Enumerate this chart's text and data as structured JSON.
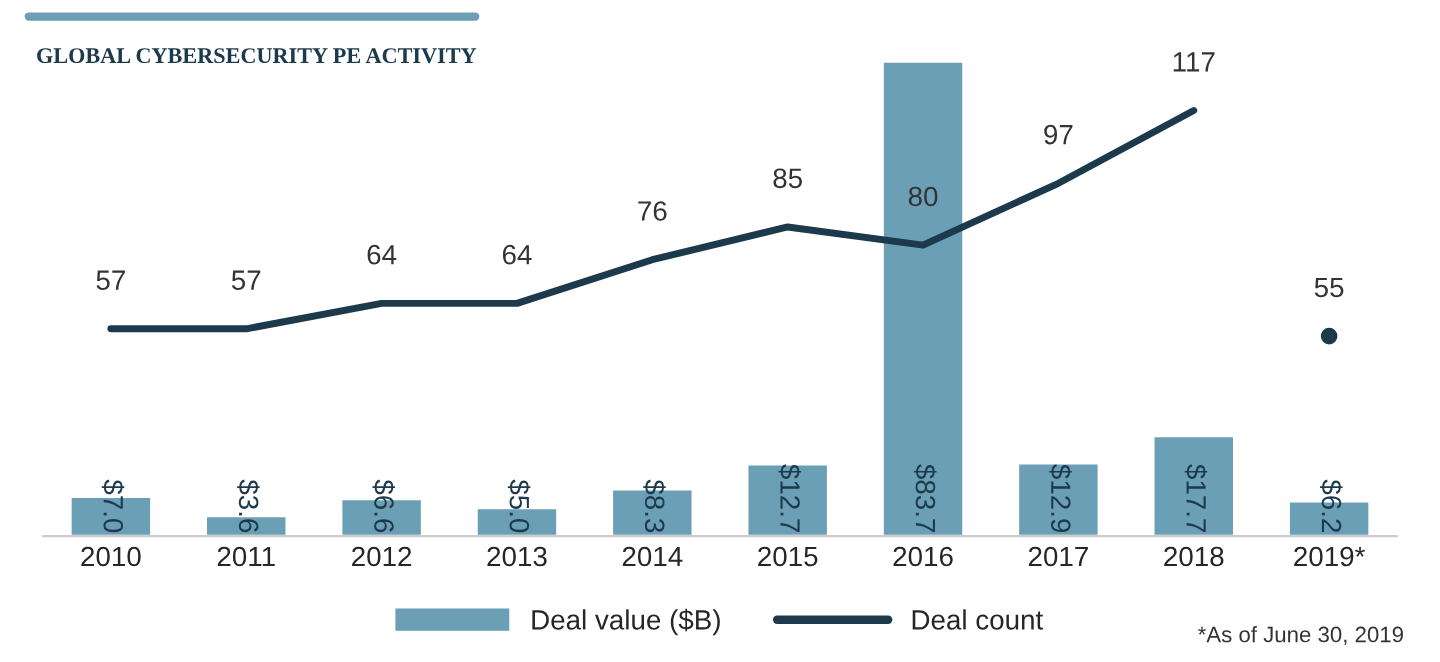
{
  "chart_data": {
    "type": "bar",
    "title": "GLOBAL CYBERSECURITY PE ACTIVITY",
    "categories": [
      "2010",
      "2011",
      "2012",
      "2013",
      "2014",
      "2015",
      "2016",
      "2017",
      "2018",
      "2019*"
    ],
    "series": [
      {
        "name": "Deal value ($B)",
        "color": "#6b9fb6",
        "values": [
          7.0,
          3.6,
          6.6,
          5.0,
          8.3,
          12.7,
          83.7,
          12.9,
          17.7,
          6.2
        ],
        "value_labels": [
          "$7.0",
          "$3.6",
          "$6.6",
          "$5.0",
          "$8.3",
          "$12.7",
          "$83.7",
          "$12.9",
          "$17.7",
          "$6.2"
        ]
      },
      {
        "type": "line",
        "axis": "y2",
        "name": "Deal count",
        "color": "#1c3a4c",
        "values": [
          57,
          57,
          64,
          64,
          76,
          85,
          80,
          97,
          117,
          null
        ],
        "value_labels": [
          "57",
          "57",
          "64",
          "64",
          "76",
          "85",
          "80",
          "97",
          "117",
          null
        ]
      },
      {
        "type": "scatter",
        "axis": "y2",
        "color": "#1c3a4c",
        "marker": "circle",
        "values": [
          null,
          null,
          null,
          null,
          null,
          null,
          null,
          null,
          null,
          55
        ],
        "value_labels": [
          null,
          null,
          null,
          null,
          null,
          null,
          null,
          null,
          null,
          "55"
        ]
      }
    ],
    "ylim": [
      0,
      84
    ],
    "y2lim": [
      0,
      131
    ],
    "tick_labels": "x",
    "grid": false,
    "legend": "bottom",
    "annotations": [
      "*As of June 30, 2019"
    ]
  }
}
